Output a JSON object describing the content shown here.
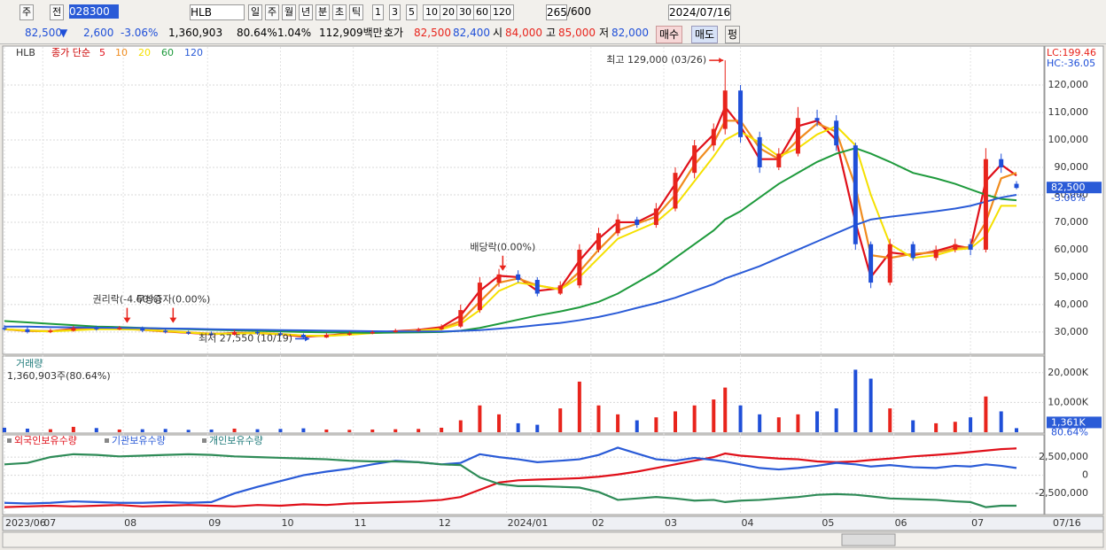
{
  "toolbar": {
    "market": "주",
    "prev": "전",
    "code": "028300",
    "name": "HLB",
    "periods": [
      "일",
      "주",
      "월",
      "년",
      "분",
      "초",
      "틱"
    ],
    "intervals": [
      "1",
      "3",
      "5",
      "10",
      "20",
      "30",
      "60",
      "120"
    ],
    "count": "265",
    "max": "/600",
    "date": "2024/07/16"
  },
  "quote": {
    "price": "82,500",
    "arrow": "▼",
    "change": "2,600",
    "rate": "-3.06%",
    "volume": "1,360,903",
    "turnover_rate": "80.64%",
    "ratio": "1.04%",
    "amount": "112,909백만",
    "ask_label": "호가",
    "ask": "82,500",
    "bid": "82,400",
    "open_label": "시",
    "open": "84,000",
    "high_label": "고",
    "high": "85,000",
    "low_label": "저",
    "low": "82,000",
    "buy": "매수",
    "sell": "매도",
    "flat": "펑"
  },
  "chart_data": [
    {
      "type": "candlestick",
      "symbol": "HLB",
      "legend_title": "종가 단순",
      "up_color": "#e8241c",
      "down_color": "#1f4fd8",
      "x": [
        0,
        6,
        12,
        18,
        24,
        30,
        36,
        42,
        48,
        54,
        60,
        66,
        72,
        78,
        84,
        90,
        96,
        102,
        108,
        114,
        119,
        124,
        129,
        134,
        139,
        145,
        150,
        155,
        160,
        165,
        170,
        175,
        180,
        185,
        188,
        192,
        197,
        202,
        207,
        212,
        217,
        222,
        226,
        231,
        237,
        243,
        248,
        252,
        256,
        260,
        264
      ],
      "open": [
        31500,
        31000,
        30000,
        30500,
        31500,
        31000,
        31500,
        30500,
        30000,
        29500,
        29000,
        30000,
        29500,
        29000,
        28000,
        29000,
        29500,
        30000,
        30500,
        31000,
        32000,
        38000,
        48000,
        51000,
        49000,
        44000,
        47000,
        60000,
        66000,
        71000,
        69000,
        75000,
        88000,
        98000,
        104000,
        118000,
        101000,
        90000,
        95000,
        108000,
        107000,
        98000,
        62000,
        48000,
        62000,
        57000,
        60000,
        62000,
        60000,
        93000,
        84000
      ],
      "high": [
        32500,
        31800,
        31200,
        32200,
        32300,
        32200,
        32000,
        31200,
        30500,
        30200,
        30800,
        30600,
        30200,
        29500,
        29700,
        30200,
        30600,
        31200,
        31600,
        32800,
        40000,
        50000,
        53000,
        52500,
        50000,
        48500,
        62000,
        68000,
        73000,
        72000,
        77000,
        90000,
        100000,
        106000,
        129000,
        120000,
        103000,
        97000,
        112000,
        111000,
        109000,
        99000,
        63000,
        64000,
        63000,
        61500,
        64000,
        64000,
        97000,
        95000,
        85000
      ],
      "low": [
        30500,
        29500,
        29600,
        30100,
        30500,
        30700,
        30000,
        29500,
        29000,
        28600,
        28700,
        29000,
        28500,
        27550,
        27800,
        28700,
        29200,
        29700,
        30200,
        30700,
        31500,
        37000,
        46500,
        48000,
        43000,
        43500,
        46000,
        59000,
        65000,
        68000,
        68000,
        74000,
        86000,
        96000,
        102000,
        99000,
        88000,
        89000,
        94000,
        105000,
        96000,
        60000,
        46000,
        47000,
        56000,
        56000,
        59000,
        58000,
        59000,
        88000,
        82000
      ],
      "values": [
        31000,
        30000,
        30500,
        31500,
        31000,
        31500,
        30500,
        30000,
        29500,
        29000,
        30000,
        29500,
        29000,
        28000,
        29000,
        29500,
        30000,
        30500,
        31000,
        32000,
        38000,
        48000,
        51000,
        49000,
        44000,
        47000,
        60000,
        66000,
        71000,
        69000,
        75000,
        88000,
        98000,
        104000,
        118000,
        101000,
        90000,
        95000,
        108000,
        107000,
        98000,
        62000,
        48000,
        62000,
        57000,
        60000,
        62000,
        60000,
        93000,
        90000,
        82500
      ],
      "series": [
        {
          "name": "5",
          "color": "#e0101a",
          "values": [
            31000,
            30400,
            30300,
            31200,
            31200,
            31300,
            30800,
            30200,
            29700,
            29200,
            29700,
            29600,
            29200,
            28300,
            28700,
            29400,
            29800,
            30300,
            30800,
            31800,
            36000,
            45000,
            50500,
            50000,
            45000,
            46000,
            56000,
            64000,
            70000,
            70000,
            73500,
            84000,
            95000,
            102000,
            112000,
            105000,
            93000,
            93000,
            105000,
            107000,
            100000,
            70000,
            50000,
            59000,
            58000,
            59500,
            61500,
            60500,
            85000,
            91000,
            87000
          ]
        },
        {
          "name": "10",
          "color": "#f08c1e",
          "values": [
            31000,
            30600,
            30300,
            30900,
            31200,
            31200,
            31000,
            30400,
            29900,
            29400,
            29500,
            29700,
            29300,
            28700,
            28600,
            29200,
            29700,
            30100,
            30600,
            31300,
            34000,
            41000,
            48000,
            49500,
            47000,
            45500,
            52000,
            60000,
            67000,
            69500,
            72000,
            80000,
            91000,
            99000,
            107000,
            107000,
            97000,
            93000,
            100000,
            106000,
            103000,
            83000,
            58000,
            57000,
            58500,
            59000,
            60500,
            61000,
            70000,
            86000,
            88000
          ]
        },
        {
          "name": "20",
          "color": "#f5e000",
          "values": [
            31000,
            30500,
            30200,
            30600,
            31000,
            31000,
            30800,
            30300,
            29800,
            29300,
            29500,
            29600,
            29200,
            28700,
            28600,
            29000,
            29600,
            30000,
            30500,
            31000,
            33000,
            38000,
            45000,
            48000,
            47000,
            45500,
            50000,
            57000,
            64000,
            67000,
            70000,
            76000,
            85000,
            94000,
            100000,
            103000,
            99000,
            94000,
            97000,
            102000,
            105000,
            98000,
            80000,
            62000,
            57000,
            58000,
            60000,
            60500,
            65000,
            76000,
            76000
          ]
        },
        {
          "name": "60",
          "color": "#1e9a3c",
          "values": [
            34000,
            33500,
            33000,
            32500,
            32000,
            31800,
            31500,
            31200,
            31000,
            30800,
            30600,
            30400,
            30200,
            30000,
            29900,
            29800,
            29700,
            29800,
            29900,
            30000,
            30500,
            31500,
            33000,
            34500,
            36000,
            37500,
            39000,
            41000,
            44000,
            48000,
            52000,
            57000,
            62000,
            67000,
            71000,
            74000,
            79000,
            84000,
            88000,
            92000,
            95000,
            97000,
            95000,
            92000,
            88000,
            86000,
            84000,
            82000,
            80000,
            78500,
            78000
          ]
        },
        {
          "name": "120",
          "color": "#2a5bd7",
          "values": [
            32000,
            32000,
            31800,
            31700,
            31600,
            31500,
            31400,
            31300,
            31200,
            31000,
            30900,
            30800,
            30700,
            30600,
            30500,
            30400,
            30300,
            30200,
            30200,
            30200,
            30400,
            30700,
            31200,
            31800,
            32500,
            33300,
            34300,
            35500,
            37000,
            38800,
            40500,
            42500,
            45000,
            47500,
            49500,
            51500,
            54000,
            57000,
            60000,
            63000,
            66000,
            69000,
            71000,
            72000,
            73000,
            74000,
            75000,
            76000,
            77500,
            79000,
            80000
          ]
        }
      ],
      "ylim": [
        21900,
        134200
      ],
      "yticks": [
        {
          "value": 30000,
          "label": "30,000"
        },
        {
          "value": 40000,
          "label": "40,000"
        },
        {
          "value": 50000,
          "label": "50,000"
        },
        {
          "value": 60000,
          "label": "60,000"
        },
        {
          "value": 70000,
          "label": "70,000"
        },
        {
          "value": 80000,
          "label": "80,000"
        },
        {
          "value": 90000,
          "label": "90,000"
        },
        {
          "value": 100000,
          "label": "100,000"
        },
        {
          "value": 110000,
          "label": "110,000"
        },
        {
          "value": 120000,
          "label": "120,000"
        }
      ],
      "grid": true,
      "last_label": "82,500",
      "last_change": "-3.06%",
      "lc": "LC:199.46",
      "hc": "HC:-36.05",
      "annotations": [
        {
          "label": "최고 129,000 (03/26)",
          "x": 188,
          "value": 129000,
          "arrow": "right"
        },
        {
          "label": "최저 27,550 (10/19)",
          "x": 80,
          "value": 27550,
          "arrow": "right"
        },
        {
          "label": "배당락(0.00%)",
          "x": 130,
          "value": 52000,
          "arrow": "down"
        },
        {
          "label": "권리락(-4.60%)",
          "x": 32,
          "value": 33000,
          "arrow": "down"
        },
        {
          "label": "무상증자(0.00%)",
          "x": 44,
          "value": 33000,
          "arrow": "down"
        }
      ]
    },
    {
      "type": "bar",
      "title": "거래량",
      "subtitle": "1,360,903주(80.64%)",
      "values": [
        1500,
        1200,
        1000,
        1800,
        1400,
        900,
        1000,
        1100,
        800,
        900,
        1200,
        1000,
        1100,
        1300,
        900,
        800,
        900,
        1000,
        1100,
        1500,
        4000,
        9000,
        6000,
        3000,
        2500,
        8000,
        17000,
        9000,
        6000,
        4000,
        5000,
        7000,
        9000,
        11000,
        15000,
        9000,
        6000,
        5000,
        6000,
        7000,
        8000,
        21000,
        18000,
        8000,
        4000,
        3000,
        3500,
        5000,
        12000,
        7000,
        1361
      ],
      "ylim": [
        0,
        25000
      ],
      "yticks": [
        {
          "value": 10000,
          "label": "10,000K"
        },
        {
          "value": 20000,
          "label": "20,000K"
        }
      ],
      "grid": true,
      "last_label": "1,361K",
      "last_rate": "80.64%"
    },
    {
      "type": "line",
      "grid": true,
      "series": [
        {
          "name": "외국인보유수량",
          "color": "#e0101a",
          "values": [
            -4400000,
            -4300000,
            -4200000,
            -4300000,
            -4200000,
            -4100000,
            -4300000,
            -4200000,
            -4100000,
            -4200000,
            -4300000,
            -4100000,
            -4200000,
            -4000000,
            -4100000,
            -3900000,
            -3800000,
            -3700000,
            -3600000,
            -3400000,
            -3000000,
            -2000000,
            -1000000,
            -700000,
            -600000,
            -500000,
            -400000,
            -200000,
            100000,
            500000,
            1000000,
            1500000,
            2000000,
            2500000,
            3000000,
            2700000,
            2500000,
            2300000,
            2200000,
            1900000,
            1800000,
            1900000,
            2100000,
            2300000,
            2600000,
            2800000,
            3000000,
            3200000,
            3400000,
            3600000,
            3700000
          ]
        },
        {
          "name": "기관보유수량",
          "color": "#2a5bd7",
          "values": [
            -3800000,
            -3900000,
            -3800000,
            -3600000,
            -3700000,
            -3800000,
            -3800000,
            -3700000,
            -3800000,
            -3700000,
            -2500000,
            -1600000,
            -800000,
            0,
            500000,
            900000,
            1500000,
            2000000,
            1800000,
            1500000,
            1700000,
            2900000,
            2500000,
            2200000,
            1800000,
            2000000,
            2200000,
            2800000,
            3800000,
            3000000,
            2200000,
            2000000,
            2400000,
            2100000,
            1900000,
            1500000,
            1000000,
            800000,
            1000000,
            1300000,
            1700000,
            1500000,
            1200000,
            1400000,
            1100000,
            1000000,
            1300000,
            1200000,
            1500000,
            1300000,
            1000000
          ]
        },
        {
          "name": "개인보유수량",
          "color": "#2e8b57",
          "values": [
            1500000,
            1700000,
            2500000,
            2900000,
            2800000,
            2600000,
            2700000,
            2800000,
            2900000,
            2800000,
            2600000,
            2500000,
            2400000,
            2300000,
            2200000,
            2000000,
            1900000,
            1900000,
            1800000,
            1500000,
            1400000,
            -300000,
            -1200000,
            -1500000,
            -1500000,
            -1600000,
            -1700000,
            -2300000,
            -3400000,
            -3200000,
            -3000000,
            -3200000,
            -3500000,
            -3400000,
            -3700000,
            -3500000,
            -3400000,
            -3200000,
            -3000000,
            -2700000,
            -2600000,
            -2700000,
            -2900000,
            -3200000,
            -3300000,
            -3400000,
            -3600000,
            -3700000,
            -4400000,
            -4200000,
            -4200000
          ]
        }
      ],
      "ylim": [
        -5300000,
        5200000
      ],
      "yticks": [
        {
          "value": -2500000,
          "label": "-2,500,000"
        },
        0,
        {
          "value": 2500000,
          "label": "2,500,000"
        }
      ],
      "xlim": [
        0,
        264
      ],
      "xticks": [
        {
          "value": 0,
          "label": "2023/06"
        },
        {
          "value": 10,
          "label": "07"
        },
        {
          "value": 31,
          "label": "08"
        },
        {
          "value": 53,
          "label": "09"
        },
        {
          "value": 72,
          "label": "10"
        },
        {
          "value": 91,
          "label": "11"
        },
        {
          "value": 113,
          "label": "12"
        },
        {
          "value": 131,
          "label": "2024/01"
        },
        {
          "value": 153,
          "label": "02"
        },
        {
          "value": 172,
          "label": "03"
        },
        {
          "value": 192,
          "label": "04"
        },
        {
          "value": 213,
          "label": "05"
        },
        {
          "value": 232,
          "label": "06"
        },
        {
          "value": 252,
          "label": "07"
        }
      ],
      "x_end_label": "07/16"
    }
  ]
}
